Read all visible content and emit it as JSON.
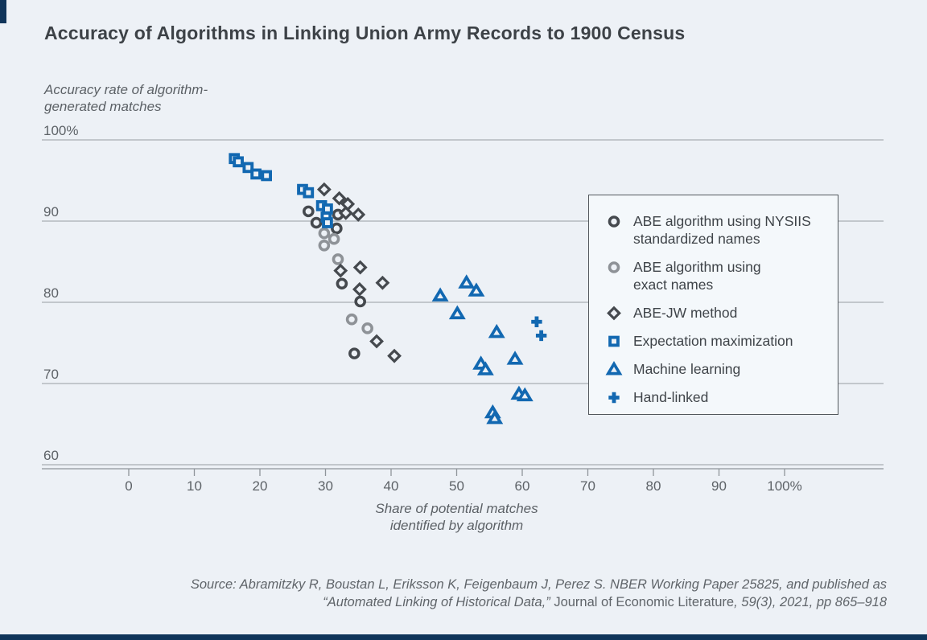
{
  "page": {
    "title": "Accuracy of Algorithms in Linking Union Army Records to 1900 Census",
    "source": {
      "line1": "Source: Abramitzky R, Boustan L, Eriksson K, Feigenbaum J, Perez S. NBER Working Paper 25825, and published as",
      "line2_pre": "“Automated Linking of Historical Data,” ",
      "line2_journal": "Journal of Economic Literature",
      "line2_post": ", 59(3), 2021, pp 865–918"
    }
  },
  "colors": {
    "background": "#edf1f6",
    "blue": "#1268b1",
    "dark": "#45494e",
    "gray": "#8e9297",
    "gridline": "#a9aeb4",
    "axis": "#8f959b",
    "navy": "#10355a"
  },
  "legend": {
    "items": [
      {
        "marker": "circle",
        "color": "#45494e",
        "lines": [
          "ABE algorithm using NYSIIS",
          "standardized names"
        ]
      },
      {
        "marker": "circle",
        "color": "#8e9297",
        "lines": [
          "ABE algorithm using",
          "exact names"
        ]
      },
      {
        "marker": "diamond",
        "color": "#45494e",
        "lines": [
          "ABE-JW method"
        ]
      },
      {
        "marker": "square",
        "color": "#1268b1",
        "lines": [
          "Expectation maximization"
        ]
      },
      {
        "marker": "triangle",
        "color": "#1268b1",
        "lines": [
          "Machine learning"
        ]
      },
      {
        "marker": "plus",
        "color": "#1268b1",
        "lines": [
          "Hand-linked"
        ]
      }
    ]
  },
  "chart_data": {
    "type": "scatter",
    "title": "Accuracy of Algorithms in Linking Union Army Records to 1900 Census",
    "xlabel_lines": [
      "Share of potential matches",
      "identified by algorithm"
    ],
    "ylabel_lines": [
      "Accuracy rate of algorithm-",
      "generated matches"
    ],
    "x_axis": {
      "range": [
        0,
        100
      ],
      "ticks": [
        {
          "value": 0,
          "label": "0"
        },
        {
          "value": 10,
          "label": "10"
        },
        {
          "value": 20,
          "label": "20"
        },
        {
          "value": 30,
          "label": "30"
        },
        {
          "value": 40,
          "label": "40"
        },
        {
          "value": 50,
          "label": "50"
        },
        {
          "value": 60,
          "label": "60"
        },
        {
          "value": 70,
          "label": "70"
        },
        {
          "value": 80,
          "label": "80"
        },
        {
          "value": 90,
          "label": "90"
        },
        {
          "value": 100,
          "label": "100%"
        }
      ]
    },
    "y_axis": {
      "range": [
        60,
        100
      ],
      "grid": true,
      "ticks": [
        {
          "value": 100,
          "label": "100%"
        },
        {
          "value": 90,
          "label": "90"
        },
        {
          "value": 80,
          "label": "80"
        },
        {
          "value": 70,
          "label": "70"
        },
        {
          "value": 60,
          "label": "60"
        }
      ]
    },
    "legend_position": "right",
    "series": [
      {
        "name": "ABE algorithm using NYSIIS standardized names",
        "marker": "circle",
        "color": "#45494e",
        "points": [
          [
            27.4,
            91.2
          ],
          [
            28.6,
            89.8
          ],
          [
            31.9,
            90.8
          ],
          [
            31.7,
            89.1
          ],
          [
            32.5,
            82.3
          ],
          [
            35.3,
            80.1
          ],
          [
            34.4,
            73.7
          ]
        ]
      },
      {
        "name": "ABE algorithm using exact names",
        "marker": "circle",
        "color": "#8e9297",
        "points": [
          [
            29.8,
            88.5
          ],
          [
            31.3,
            87.8
          ],
          [
            29.8,
            87.0
          ],
          [
            31.9,
            85.3
          ],
          [
            34.0,
            77.9
          ],
          [
            36.4,
            76.8
          ]
        ]
      },
      {
        "name": "ABE-JW method",
        "marker": "diamond",
        "color": "#45494e",
        "points": [
          [
            29.8,
            93.9
          ],
          [
            32.1,
            92.8
          ],
          [
            33.4,
            92.1
          ],
          [
            33.1,
            91.0
          ],
          [
            35.0,
            90.8
          ],
          [
            35.3,
            84.3
          ],
          [
            32.3,
            83.9
          ],
          [
            35.2,
            81.6
          ],
          [
            38.7,
            82.4
          ],
          [
            37.8,
            75.2
          ],
          [
            40.5,
            73.4
          ]
        ]
      },
      {
        "name": "Expectation maximization",
        "marker": "square",
        "color": "#1268b1",
        "points": [
          [
            16.1,
            97.7
          ],
          [
            16.7,
            97.3
          ],
          [
            18.2,
            96.6
          ],
          [
            19.4,
            95.8
          ],
          [
            21.0,
            95.6
          ],
          [
            26.5,
            93.9
          ],
          [
            27.4,
            93.5
          ],
          [
            29.4,
            91.9
          ],
          [
            30.3,
            91.5
          ],
          [
            30.1,
            90.5
          ],
          [
            30.3,
            89.8
          ]
        ]
      },
      {
        "name": "Machine learning",
        "marker": "triangle",
        "color": "#1268b1",
        "points": [
          [
            47.5,
            80.8
          ],
          [
            51.5,
            82.4
          ],
          [
            53.0,
            81.4
          ],
          [
            50.1,
            78.6
          ],
          [
            56.1,
            76.3
          ],
          [
            53.7,
            72.4
          ],
          [
            54.4,
            71.7
          ],
          [
            58.9,
            73.0
          ],
          [
            59.5,
            68.7
          ],
          [
            60.4,
            68.5
          ],
          [
            55.5,
            66.4
          ],
          [
            55.8,
            65.7
          ]
        ]
      },
      {
        "name": "Hand-linked",
        "marker": "plus",
        "color": "#1268b1",
        "points": [
          [
            62.2,
            77.6
          ],
          [
            62.9,
            75.9
          ]
        ]
      }
    ]
  }
}
